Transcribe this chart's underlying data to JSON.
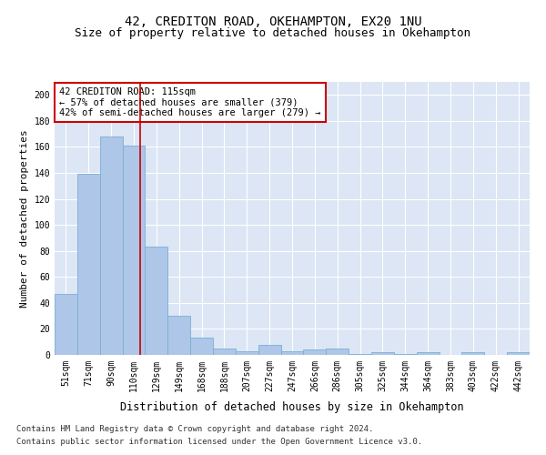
{
  "title": "42, CREDITON ROAD, OKEHAMPTON, EX20 1NU",
  "subtitle": "Size of property relative to detached houses in Okehampton",
  "xlabel": "Distribution of detached houses by size in Okehampton",
  "ylabel": "Number of detached properties",
  "categories": [
    "51sqm",
    "71sqm",
    "90sqm",
    "110sqm",
    "129sqm",
    "149sqm",
    "168sqm",
    "188sqm",
    "207sqm",
    "227sqm",
    "247sqm",
    "266sqm",
    "286sqm",
    "305sqm",
    "325sqm",
    "344sqm",
    "364sqm",
    "383sqm",
    "403sqm",
    "422sqm",
    "442sqm"
  ],
  "bar_values": [
    47,
    139,
    168,
    161,
    83,
    30,
    13,
    5,
    3,
    8,
    3,
    4,
    5,
    1,
    2,
    1,
    2,
    0,
    2,
    0,
    2
  ],
  "bar_color": "#aec6e8",
  "bar_edge_color": "#7bafd4",
  "vline_color": "#cc0000",
  "annotation_line1": "42 CREDITON ROAD: 115sqm",
  "annotation_line2": "← 57% of detached houses are smaller (379)",
  "annotation_line3": "42% of semi-detached houses are larger (279) →",
  "annotation_box_color": "white",
  "annotation_box_edge_color": "#cc0000",
  "ylim": [
    0,
    210
  ],
  "yticks": [
    0,
    20,
    40,
    60,
    80,
    100,
    120,
    140,
    160,
    180,
    200
  ],
  "plot_bg_color": "#dce6f5",
  "grid_color": "#ffffff",
  "footer_line1": "Contains HM Land Registry data © Crown copyright and database right 2024.",
  "footer_line2": "Contains public sector information licensed under the Open Government Licence v3.0.",
  "title_fontsize": 10,
  "subtitle_fontsize": 9,
  "xlabel_fontsize": 8.5,
  "ylabel_fontsize": 8,
  "tick_fontsize": 7,
  "footer_fontsize": 6.5,
  "annotation_fontsize": 7.5
}
